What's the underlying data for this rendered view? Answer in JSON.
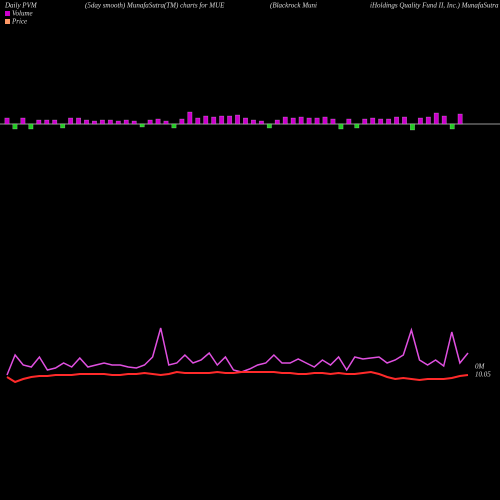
{
  "chart_data": {
    "type": "pvm",
    "title": "Daily PVM",
    "subtitle": "(5day smooth) MunafaSutra(TM) charts for MUE",
    "company": "(Blackrock Muni",
    "company_cont": "iHoldings Quality Fund II, Inc.) MunafaSutra",
    "volume_label": "0M",
    "price_label": "10.05",
    "bars": {
      "name": "Volume",
      "up_color": "#cc00cc",
      "down_color": "#22cc22",
      "values": [
        6,
        -5,
        6,
        -5,
        4,
        4,
        4,
        -4,
        6,
        6,
        4,
        3,
        4,
        4,
        3,
        4,
        3,
        -3,
        4,
        5,
        3,
        -4,
        5,
        12,
        6,
        8,
        7,
        8,
        8,
        9,
        6,
        4,
        3,
        -4,
        4,
        7,
        6,
        7,
        6,
        6,
        7,
        5,
        -5,
        5,
        -4,
        5,
        6,
        5,
        5,
        7,
        7,
        -6,
        6,
        7,
        11,
        8,
        -5,
        10
      ]
    },
    "series": [
      {
        "name": "Volume",
        "color": "#e050e0",
        "values": [
          10,
          30,
          20,
          18,
          28,
          15,
          17,
          22,
          18,
          27,
          18,
          20,
          22,
          20,
          20,
          18,
          17,
          20,
          28,
          57,
          20,
          22,
          30,
          22,
          25,
          32,
          20,
          28,
          15,
          13,
          16,
          20,
          22,
          30,
          22,
          22,
          26,
          22,
          18,
          25,
          20,
          28,
          15,
          28,
          26,
          27,
          28,
          22,
          25,
          30,
          55,
          25,
          20,
          25,
          19,
          53,
          22,
          32
        ]
      },
      {
        "name": "Price",
        "color": "#ff2a2a",
        "values": [
          8,
          3,
          6,
          8,
          9,
          9,
          10,
          10,
          10,
          11,
          11,
          11,
          11,
          10,
          10,
          11,
          11,
          12,
          11,
          10,
          11,
          13,
          12,
          12,
          12,
          12,
          13,
          12,
          12,
          13,
          13,
          13,
          13,
          13,
          12,
          12,
          11,
          11,
          12,
          12,
          11,
          12,
          11,
          11,
          12,
          13,
          11,
          8,
          6,
          7,
          6,
          5,
          6,
          6,
          6,
          7,
          9,
          10
        ]
      }
    ]
  }
}
